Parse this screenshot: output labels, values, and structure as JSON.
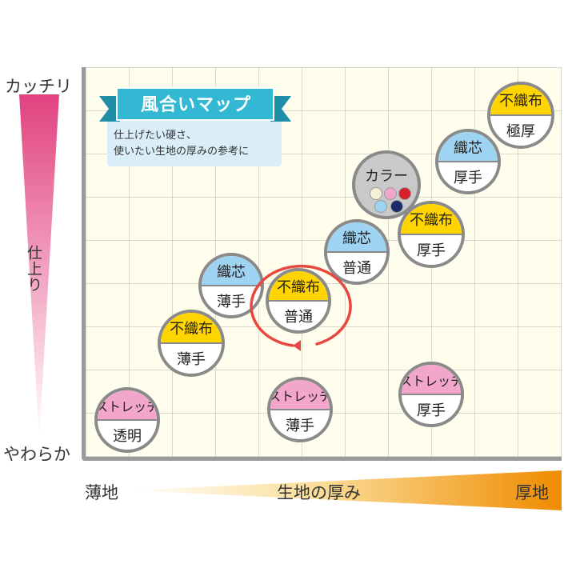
{
  "axis": {
    "y_top": "カッチリ",
    "y_mid": "仕上り",
    "y_bottom": "やわらか",
    "x_left": "薄地",
    "x_mid": "生地の厚み",
    "x_right": "厚地"
  },
  "title": {
    "ribbon": "風合いマップ",
    "note_line1": "仕上げたい硬さ、",
    "note_line2": "使いたい生地の厚みの参考に"
  },
  "colors": {
    "yellow": "#ffd400",
    "blue": "#9fd3f2",
    "pink": "#f3a6cc",
    "gray": "#c9c9c9",
    "highlight": "#e8473f",
    "ribbon": "#33b8d3",
    "y_gradient_top": "#e1427f",
    "x_gradient_right": "#ef8b00"
  },
  "items": [
    {
      "id": "stretch-clear",
      "top": "ストレッチ",
      "bottom": "透明",
      "color": "pink",
      "highlighted": false
    },
    {
      "id": "nonwoven-thin",
      "top": "不織布",
      "bottom": "薄手",
      "color": "yellow",
      "highlighted": false
    },
    {
      "id": "woven-thin",
      "top": "織芯",
      "bottom": "薄手",
      "color": "blue",
      "highlighted": false
    },
    {
      "id": "nonwoven-normal",
      "top": "不織布",
      "bottom": "普通",
      "color": "yellow",
      "highlighted": true
    },
    {
      "id": "stretch-thin",
      "top": "ストレッチ",
      "bottom": "薄手",
      "color": "pink",
      "highlighted": false
    },
    {
      "id": "woven-normal",
      "top": "織芯",
      "bottom": "普通",
      "color": "blue",
      "highlighted": false
    },
    {
      "id": "nonwoven-thick",
      "top": "不織布",
      "bottom": "厚手",
      "color": "yellow",
      "highlighted": false
    },
    {
      "id": "stretch-thick",
      "top": "ストレッチ",
      "bottom": "厚手",
      "color": "pink",
      "highlighted": false
    },
    {
      "id": "woven-thick",
      "top": "織芯",
      "bottom": "厚手",
      "color": "blue",
      "highlighted": false
    },
    {
      "id": "nonwoven-extra",
      "top": "不織布",
      "bottom": "極厚",
      "color": "yellow",
      "highlighted": false
    }
  ],
  "color_variant": {
    "label": "カラー",
    "swatches": [
      "#f5f0d6",
      "#f3a6cc",
      "#d81e2c",
      "#9fd3f2",
      "#1d2a6b"
    ]
  }
}
